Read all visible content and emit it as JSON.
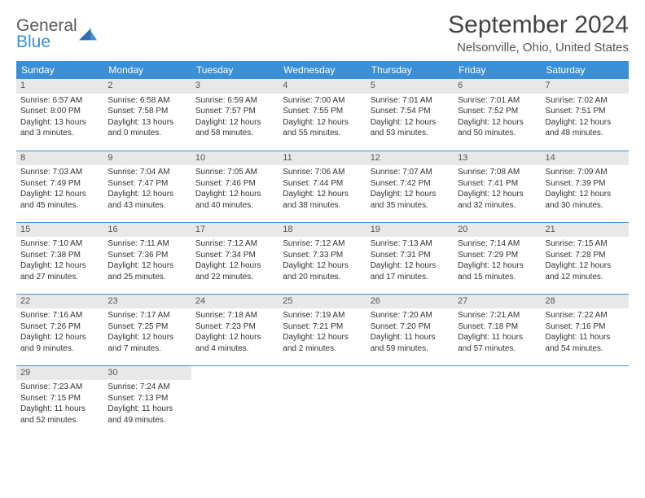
{
  "logo": {
    "line1": "General",
    "line2": "Blue"
  },
  "header": {
    "month_title": "September 2024",
    "location": "Nelsonville, Ohio, United States"
  },
  "style": {
    "header_bg": "#3b8fd6",
    "header_fg": "#ffffff",
    "daynum_bg": "#e8e8e8",
    "row_border": "#3b8fd6",
    "body_font_size": 10,
    "header_font_size": 12,
    "month_title_size": 30,
    "location_size": 15
  },
  "columns": [
    "Sunday",
    "Monday",
    "Tuesday",
    "Wednesday",
    "Thursday",
    "Friday",
    "Saturday"
  ],
  "weeks": [
    [
      {
        "day": "1",
        "sunrise": "Sunrise: 6:57 AM",
        "sunset": "Sunset: 8:00 PM",
        "daylight": "Daylight: 13 hours and 3 minutes."
      },
      {
        "day": "2",
        "sunrise": "Sunrise: 6:58 AM",
        "sunset": "Sunset: 7:58 PM",
        "daylight": "Daylight: 13 hours and 0 minutes."
      },
      {
        "day": "3",
        "sunrise": "Sunrise: 6:59 AM",
        "sunset": "Sunset: 7:57 PM",
        "daylight": "Daylight: 12 hours and 58 minutes."
      },
      {
        "day": "4",
        "sunrise": "Sunrise: 7:00 AM",
        "sunset": "Sunset: 7:55 PM",
        "daylight": "Daylight: 12 hours and 55 minutes."
      },
      {
        "day": "5",
        "sunrise": "Sunrise: 7:01 AM",
        "sunset": "Sunset: 7:54 PM",
        "daylight": "Daylight: 12 hours and 53 minutes."
      },
      {
        "day": "6",
        "sunrise": "Sunrise: 7:01 AM",
        "sunset": "Sunset: 7:52 PM",
        "daylight": "Daylight: 12 hours and 50 minutes."
      },
      {
        "day": "7",
        "sunrise": "Sunrise: 7:02 AM",
        "sunset": "Sunset: 7:51 PM",
        "daylight": "Daylight: 12 hours and 48 minutes."
      }
    ],
    [
      {
        "day": "8",
        "sunrise": "Sunrise: 7:03 AM",
        "sunset": "Sunset: 7:49 PM",
        "daylight": "Daylight: 12 hours and 45 minutes."
      },
      {
        "day": "9",
        "sunrise": "Sunrise: 7:04 AM",
        "sunset": "Sunset: 7:47 PM",
        "daylight": "Daylight: 12 hours and 43 minutes."
      },
      {
        "day": "10",
        "sunrise": "Sunrise: 7:05 AM",
        "sunset": "Sunset: 7:46 PM",
        "daylight": "Daylight: 12 hours and 40 minutes."
      },
      {
        "day": "11",
        "sunrise": "Sunrise: 7:06 AM",
        "sunset": "Sunset: 7:44 PM",
        "daylight": "Daylight: 12 hours and 38 minutes."
      },
      {
        "day": "12",
        "sunrise": "Sunrise: 7:07 AM",
        "sunset": "Sunset: 7:42 PM",
        "daylight": "Daylight: 12 hours and 35 minutes."
      },
      {
        "day": "13",
        "sunrise": "Sunrise: 7:08 AM",
        "sunset": "Sunset: 7:41 PM",
        "daylight": "Daylight: 12 hours and 32 minutes."
      },
      {
        "day": "14",
        "sunrise": "Sunrise: 7:09 AM",
        "sunset": "Sunset: 7:39 PM",
        "daylight": "Daylight: 12 hours and 30 minutes."
      }
    ],
    [
      {
        "day": "15",
        "sunrise": "Sunrise: 7:10 AM",
        "sunset": "Sunset: 7:38 PM",
        "daylight": "Daylight: 12 hours and 27 minutes."
      },
      {
        "day": "16",
        "sunrise": "Sunrise: 7:11 AM",
        "sunset": "Sunset: 7:36 PM",
        "daylight": "Daylight: 12 hours and 25 minutes."
      },
      {
        "day": "17",
        "sunrise": "Sunrise: 7:12 AM",
        "sunset": "Sunset: 7:34 PM",
        "daylight": "Daylight: 12 hours and 22 minutes."
      },
      {
        "day": "18",
        "sunrise": "Sunrise: 7:12 AM",
        "sunset": "Sunset: 7:33 PM",
        "daylight": "Daylight: 12 hours and 20 minutes."
      },
      {
        "day": "19",
        "sunrise": "Sunrise: 7:13 AM",
        "sunset": "Sunset: 7:31 PM",
        "daylight": "Daylight: 12 hours and 17 minutes."
      },
      {
        "day": "20",
        "sunrise": "Sunrise: 7:14 AM",
        "sunset": "Sunset: 7:29 PM",
        "daylight": "Daylight: 12 hours and 15 minutes."
      },
      {
        "day": "21",
        "sunrise": "Sunrise: 7:15 AM",
        "sunset": "Sunset: 7:28 PM",
        "daylight": "Daylight: 12 hours and 12 minutes."
      }
    ],
    [
      {
        "day": "22",
        "sunrise": "Sunrise: 7:16 AM",
        "sunset": "Sunset: 7:26 PM",
        "daylight": "Daylight: 12 hours and 9 minutes."
      },
      {
        "day": "23",
        "sunrise": "Sunrise: 7:17 AM",
        "sunset": "Sunset: 7:25 PM",
        "daylight": "Daylight: 12 hours and 7 minutes."
      },
      {
        "day": "24",
        "sunrise": "Sunrise: 7:18 AM",
        "sunset": "Sunset: 7:23 PM",
        "daylight": "Daylight: 12 hours and 4 minutes."
      },
      {
        "day": "25",
        "sunrise": "Sunrise: 7:19 AM",
        "sunset": "Sunset: 7:21 PM",
        "daylight": "Daylight: 12 hours and 2 minutes."
      },
      {
        "day": "26",
        "sunrise": "Sunrise: 7:20 AM",
        "sunset": "Sunset: 7:20 PM",
        "daylight": "Daylight: 11 hours and 59 minutes."
      },
      {
        "day": "27",
        "sunrise": "Sunrise: 7:21 AM",
        "sunset": "Sunset: 7:18 PM",
        "daylight": "Daylight: 11 hours and 57 minutes."
      },
      {
        "day": "28",
        "sunrise": "Sunrise: 7:22 AM",
        "sunset": "Sunset: 7:16 PM",
        "daylight": "Daylight: 11 hours and 54 minutes."
      }
    ],
    [
      {
        "day": "29",
        "sunrise": "Sunrise: 7:23 AM",
        "sunset": "Sunset: 7:15 PM",
        "daylight": "Daylight: 11 hours and 52 minutes."
      },
      {
        "day": "30",
        "sunrise": "Sunrise: 7:24 AM",
        "sunset": "Sunset: 7:13 PM",
        "daylight": "Daylight: 11 hours and 49 minutes."
      },
      null,
      null,
      null,
      null,
      null
    ]
  ]
}
